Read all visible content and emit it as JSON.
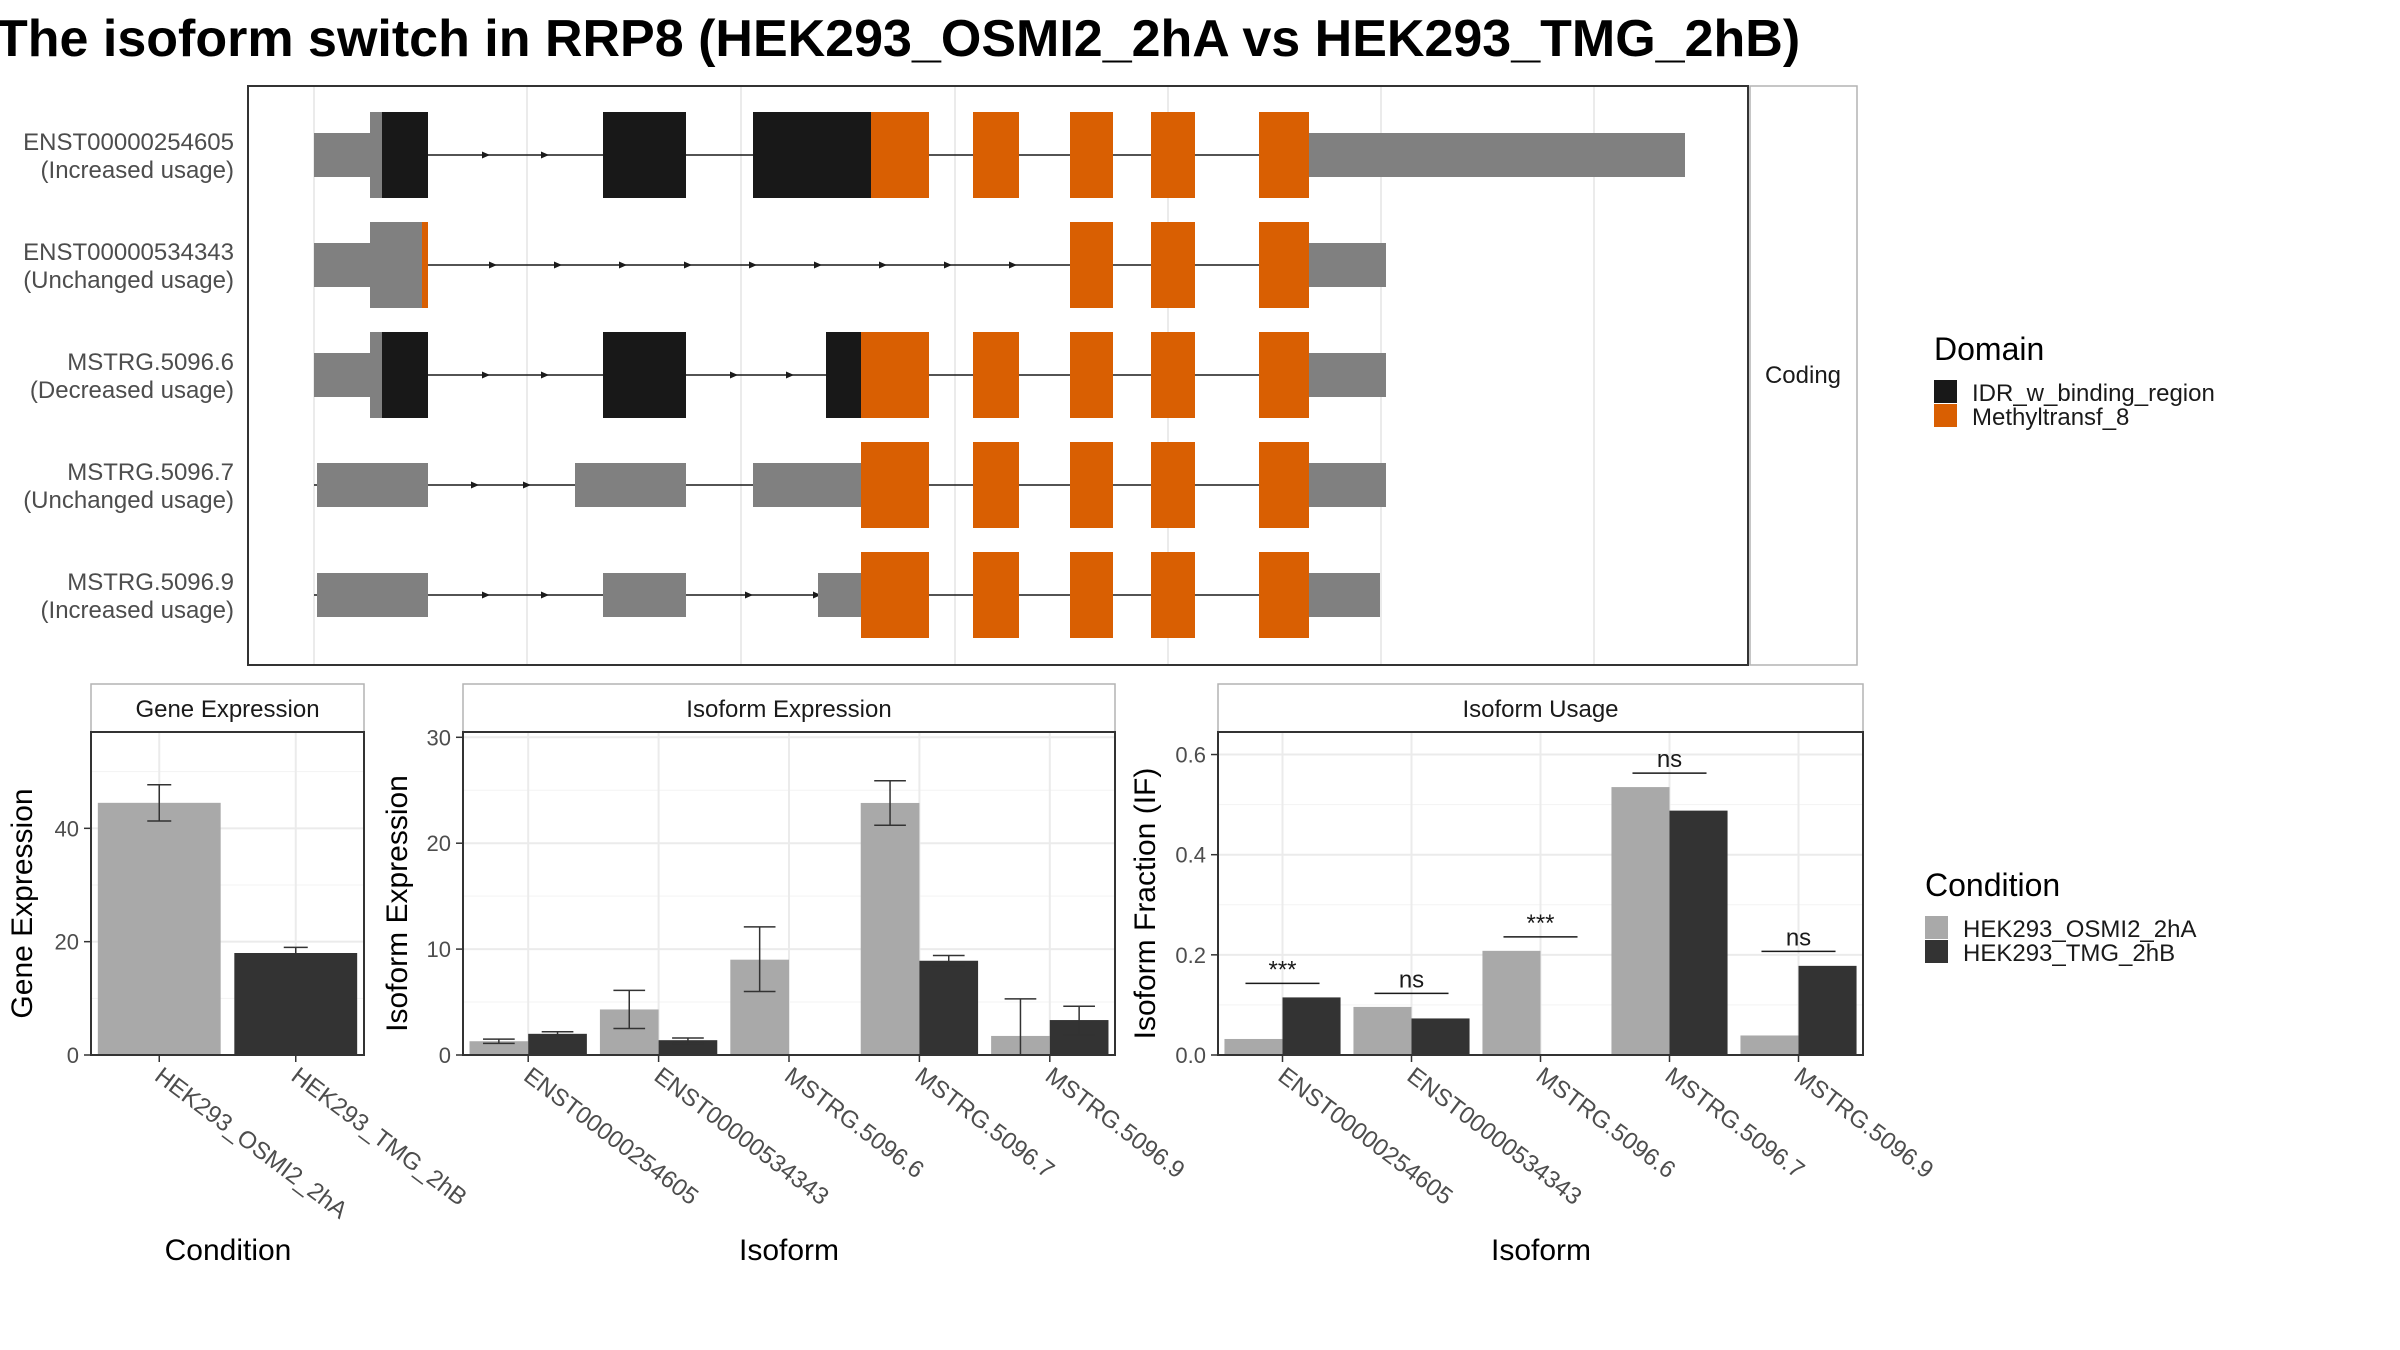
{
  "title": "The isoform switch in RRP8 (HEK293_OSMI2_2hA vs HEK293_TMG_2hB)",
  "colors": {
    "domain_IDR": "#181818",
    "domain_Methyl": "#d95f02",
    "noncoding_exon": "#808080",
    "condition_A": "#a9a9a9",
    "condition_B": "#333333",
    "grid": "#ebebeb",
    "panel_border": "#333333",
    "strip_border": "#b3b3b3"
  },
  "top_panel": {
    "strip_label": "Coding",
    "isoforms": [
      {
        "id": "ENST00000254605",
        "usage": "(Increased usage)"
      },
      {
        "id": "ENST00000534343",
        "usage": "(Unchanged usage)"
      },
      {
        "id": "MSTRG.5096.6",
        "usage": "(Decreased usage)"
      },
      {
        "id": "MSTRG.5096.7",
        "usage": "(Unchanged usage)"
      },
      {
        "id": "MSTRG.5096.9",
        "usage": "(Increased usage)"
      }
    ],
    "legend": {
      "title": "Domain",
      "items": [
        {
          "label": "IDR_w_binding_region",
          "color": "#181818"
        },
        {
          "label": "Methyltransf_8",
          "color": "#d95f02"
        }
      ]
    }
  },
  "condition_legend": {
    "title": "Condition",
    "items": [
      {
        "label": "HEK293_OSMI2_2hA",
        "color": "#a9a9a9"
      },
      {
        "label": "HEK293_TMG_2hB",
        "color": "#333333"
      }
    ]
  },
  "chart_data": [
    {
      "type": "bar",
      "title": "Gene Expression",
      "xlabel": "Condition",
      "ylabel": "Gene Expression",
      "categories": [
        "HEK293_OSMI2_2hA",
        "HEK293_TMG_2hB"
      ],
      "values": [
        44.5,
        18.0
      ],
      "error": [
        [
          41.3,
          47.7
        ],
        [
          16.9,
          19.0
        ]
      ],
      "ylim": [
        0,
        57
      ],
      "yticks": [
        0,
        20,
        40
      ]
    },
    {
      "type": "bar",
      "title": "Isoform Expression",
      "xlabel": "Isoform",
      "ylabel": "Isoform Expression",
      "categories": [
        "ENST00000254605",
        "ENST00000534343",
        "MSTRG.5096.6",
        "MSTRG.5096.7",
        "MSTRG.5096.9"
      ],
      "series": [
        {
          "name": "HEK293_OSMI2_2hA",
          "values": [
            1.3,
            4.3,
            9.0,
            23.8,
            1.8
          ],
          "error": [
            [
              1.1,
              1.5
            ],
            [
              2.5,
              6.1
            ],
            [
              6.0,
              12.1
            ],
            [
              21.7,
              25.9
            ],
            [
              0.0,
              5.3
            ]
          ]
        },
        {
          "name": "HEK293_TMG_2hB",
          "values": [
            2.0,
            1.4,
            0.0,
            8.9,
            3.3
          ],
          "error": [
            [
              1.8,
              2.2
            ],
            [
              1.1,
              1.6
            ],
            [
              0.0,
              0.0
            ],
            [
              8.4,
              9.4
            ],
            [
              1.9,
              4.6
            ]
          ]
        }
      ],
      "ylim": [
        0,
        30.5
      ],
      "yticks": [
        0,
        10,
        20,
        30
      ]
    },
    {
      "type": "bar",
      "title": "Isoform Usage",
      "xlabel": "Isoform",
      "ylabel": "Isoform Fraction (IF)",
      "categories": [
        "ENST00000254605",
        "ENST00000534343",
        "MSTRG.5096.6",
        "MSTRG.5096.7",
        "MSTRG.5096.9"
      ],
      "series": [
        {
          "name": "HEK293_OSMI2_2hA",
          "values": [
            0.032,
            0.096,
            0.208,
            0.535,
            0.039
          ]
        },
        {
          "name": "HEK293_TMG_2hB",
          "values": [
            0.115,
            0.073,
            0.0,
            0.488,
            0.178
          ]
        }
      ],
      "significance": [
        "***",
        "ns",
        "***",
        "ns",
        "ns"
      ],
      "significance_y": [
        0.143,
        0.123,
        0.236,
        0.563,
        0.207
      ],
      "ylim": [
        0,
        0.645
      ],
      "yticks": [
        0.0,
        0.2,
        0.4,
        0.6
      ],
      "ytick_labels": [
        "0.0",
        "0.2",
        "0.4",
        "0.6"
      ]
    }
  ]
}
